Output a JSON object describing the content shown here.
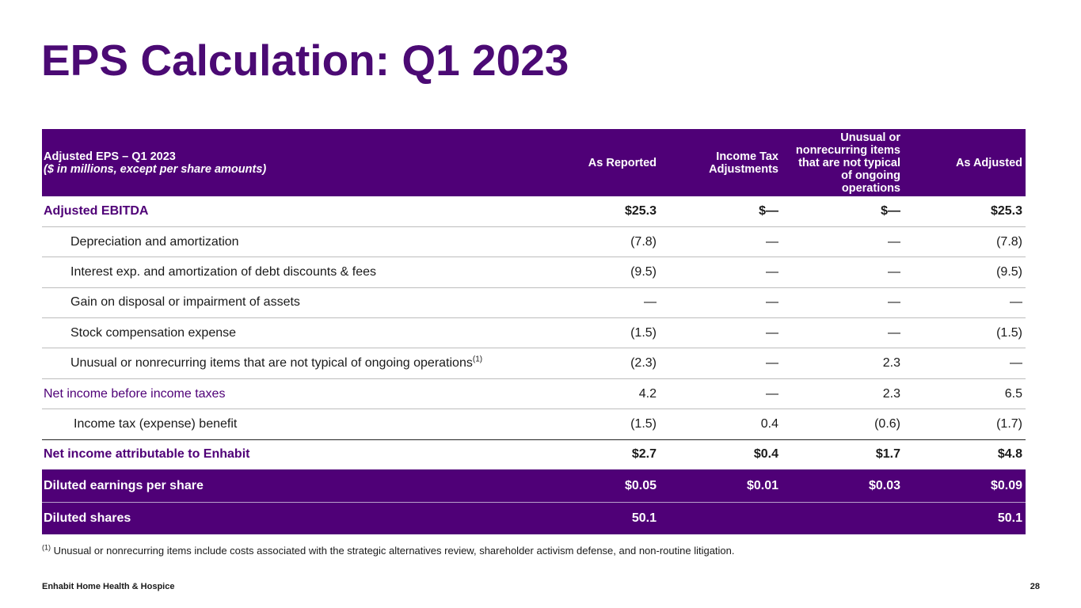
{
  "title": "EPS Calculation: Q1 2023",
  "table": {
    "header": {
      "label_main": "Adjusted EPS – Q1 2023",
      "label_sub": "($ in millions, except per share amounts)",
      "col1": "As Reported",
      "col2": "Income Tax Adjustments",
      "col3": "Unusual or nonrecurring items that are not typical of ongoing operations",
      "col4": "As Adjusted"
    },
    "rows": [
      {
        "label": "Adjusted EBITDA",
        "v1": "$25.3",
        "v2": "$—",
        "v3": "$—",
        "v4": "$25.3"
      },
      {
        "label": "Depreciation and amortization",
        "v1": "(7.8)",
        "v2": "—",
        "v3": "—",
        "v4": "(7.8)"
      },
      {
        "label": "Interest exp. and amortization of debt discounts & fees",
        "v1": "(9.5)",
        "v2": "—",
        "v3": "—",
        "v4": "(9.5)"
      },
      {
        "label": "Gain on disposal or impairment of assets",
        "v1": "—",
        "v2": "—",
        "v3": "—",
        "v4": "—"
      },
      {
        "label": "Stock compensation expense",
        "v1": "(1.5)",
        "v2": "—",
        "v3": "—",
        "v4": "(1.5)"
      },
      {
        "label": "Unusual or nonrecurring items that are not typical of ongoing operations",
        "label_sup": "(1)",
        "v1": "(2.3)",
        "v2": "—",
        "v3": "2.3",
        "v4": "—"
      },
      {
        "label": "Net income before income taxes",
        "v1": "4.2",
        "v2": "—",
        "v3": "2.3",
        "v4": "6.5"
      },
      {
        "label": "Income tax (expense) benefit",
        "v1": "(1.5)",
        "v2": "0.4",
        "v3": "(0.6)",
        "v4": "(1.7)"
      },
      {
        "label": "Net income attributable to Enhabit",
        "v1": "$2.7",
        "v2": "$0.4",
        "v3": "$1.7",
        "v4": "$4.8"
      },
      {
        "label": "Diluted earnings per share",
        "v1": "$0.05",
        "v2": "$0.01",
        "v3": "$0.03",
        "v4": "$0.09"
      },
      {
        "label": "Diluted shares",
        "v1": "50.1",
        "v2": "",
        "v3": "",
        "v4": "50.1"
      }
    ]
  },
  "footnote": {
    "marker": "(1)",
    "text": " Unusual or nonrecurring items include costs associated with the strategic alternatives review, shareholder activism defense, and non-routine litigation."
  },
  "footer": {
    "company": "Enhabit Home Health & Hospice",
    "page_number": "28"
  },
  "colors": {
    "brand_purple": "#4f0077",
    "title_purple": "#4b0a74"
  }
}
